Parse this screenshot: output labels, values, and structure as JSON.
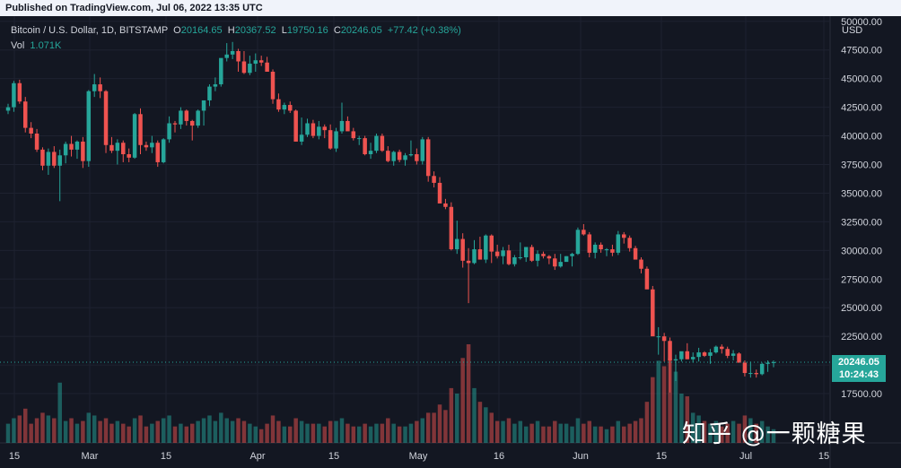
{
  "header": {
    "published": "Published on TradingView.com, Jul 06, 2022 13:35 UTC"
  },
  "legend": {
    "symbol": "Bitcoin / U.S. Dollar, 1D, BITSTAMP",
    "open_label": "O",
    "open": "20164.65",
    "high_label": "H",
    "high": "20367.52",
    "low_label": "L",
    "low": "19750.16",
    "close_label": "C",
    "close": "20246.05",
    "change": "+77.42 (+0.38%)",
    "vol_label": "Vol",
    "vol": "1.071K"
  },
  "currency": "USD",
  "price_tag": {
    "price": "20246.05",
    "countdown": "10:24:43"
  },
  "watermark": "知乎 @一颗糖果",
  "colors": {
    "up": "#26a69a",
    "down": "#ef5350",
    "background": "#131722",
    "grid": "#1e2230"
  },
  "chart_data": {
    "type": "candlestick",
    "ylim": [
      15000,
      51000
    ],
    "y_ticks": [
      "17500.00",
      "20000.00",
      "22500.00",
      "25000.00",
      "27500.00",
      "30000.00",
      "32500.00",
      "35000.00",
      "37500.00",
      "40000.00",
      "42500.00",
      "45000.00",
      "47500.00",
      "50000.00"
    ],
    "x_ticks": [
      "15",
      "Mar",
      "15",
      "Apr",
      "15",
      "May",
      "16",
      "Jun",
      "15",
      "Jul",
      "15"
    ],
    "last_price": 20246.05,
    "candles_ohlcv": [
      [
        42200,
        42800,
        41900,
        42500,
        14
      ],
      [
        42500,
        44800,
        42100,
        44600,
        18
      ],
      [
        44600,
        44900,
        42800,
        43000,
        20
      ],
      [
        43000,
        43400,
        40300,
        40700,
        25
      ],
      [
        40700,
        41200,
        39800,
        40200,
        14
      ],
      [
        40200,
        40600,
        38600,
        38800,
        18
      ],
      [
        38800,
        39000,
        37000,
        37400,
        22
      ],
      [
        37400,
        38900,
        36600,
        38600,
        20
      ],
      [
        38600,
        39100,
        37200,
        37400,
        18
      ],
      [
        37400,
        38800,
        34300,
        38300,
        44
      ],
      [
        38300,
        39500,
        37600,
        39300,
        16
      ],
      [
        39300,
        40000,
        38200,
        38800,
        18
      ],
      [
        38800,
        39600,
        38000,
        39500,
        14
      ],
      [
        39500,
        39900,
        37200,
        37800,
        16
      ],
      [
        37800,
        44000,
        37300,
        43900,
        22
      ],
      [
        43900,
        45400,
        43400,
        44500,
        20
      ],
      [
        44500,
        45100,
        43300,
        43900,
        16
      ],
      [
        43900,
        44000,
        38500,
        39200,
        18
      ],
      [
        39200,
        39900,
        38500,
        38700,
        14
      ],
      [
        38700,
        39700,
        37500,
        39400,
        16
      ],
      [
        39400,
        39600,
        37700,
        38400,
        14
      ],
      [
        38400,
        38900,
        37700,
        38100,
        12
      ],
      [
        38100,
        42000,
        38000,
        41900,
        18
      ],
      [
        41900,
        42400,
        38400,
        39200,
        20
      ],
      [
        39200,
        39500,
        38700,
        39000,
        12
      ],
      [
        39000,
        40000,
        38500,
        39400,
        14
      ],
      [
        39400,
        39600,
        37300,
        37700,
        16
      ],
      [
        37700,
        39800,
        37600,
        39700,
        18
      ],
      [
        39700,
        41700,
        39400,
        41100,
        20
      ],
      [
        41100,
        41300,
        40300,
        41000,
        12
      ],
      [
        41000,
        42500,
        40600,
        42200,
        14
      ],
      [
        42200,
        42300,
        40900,
        41300,
        12
      ],
      [
        41300,
        41400,
        39600,
        40900,
        14
      ],
      [
        40900,
        42300,
        40700,
        42200,
        16
      ],
      [
        42200,
        42900,
        40900,
        43100,
        18
      ],
      [
        43100,
        44500,
        42600,
        44300,
        20
      ],
      [
        44300,
        45100,
        43900,
        44500,
        16
      ],
      [
        44500,
        46600,
        44300,
        46800,
        22
      ],
      [
        46800,
        48100,
        46500,
        47100,
        18
      ],
      [
        47100,
        48200,
        46700,
        47400,
        16
      ],
      [
        47400,
        47600,
        45600,
        46500,
        18
      ],
      [
        46500,
        47400,
        45400,
        45500,
        16
      ],
      [
        45500,
        47000,
        45300,
        46300,
        14
      ],
      [
        46300,
        47200,
        45600,
        46600,
        12
      ],
      [
        46600,
        47000,
        46100,
        46400,
        10
      ],
      [
        46400,
        46900,
        45600,
        45600,
        14
      ],
      [
        45600,
        45800,
        42800,
        43200,
        20
      ],
      [
        43200,
        43700,
        42100,
        42300,
        16
      ],
      [
        42300,
        42900,
        41900,
        42700,
        12
      ],
      [
        42700,
        43000,
        42000,
        42200,
        12
      ],
      [
        42200,
        42300,
        39700,
        39500,
        18
      ],
      [
        39500,
        41600,
        39200,
        40100,
        16
      ],
      [
        40100,
        41500,
        39900,
        41100,
        14
      ],
      [
        41100,
        41400,
        39800,
        40000,
        14
      ],
      [
        40000,
        41300,
        39700,
        40800,
        14
      ],
      [
        40800,
        41000,
        39800,
        40500,
        12
      ],
      [
        40500,
        41000,
        38800,
        38900,
        16
      ],
      [
        38900,
        40700,
        38600,
        40400,
        16
      ],
      [
        40400,
        42900,
        40200,
        41300,
        18
      ],
      [
        41300,
        41700,
        40600,
        40400,
        14
      ],
      [
        40400,
        40700,
        39600,
        39800,
        12
      ],
      [
        39800,
        40000,
        39200,
        39800,
        12
      ],
      [
        39800,
        40000,
        38300,
        38400,
        14
      ],
      [
        38400,
        39400,
        38000,
        38700,
        12
      ],
      [
        38700,
        40200,
        38500,
        40000,
        14
      ],
      [
        40000,
        40200,
        38600,
        38700,
        14
      ],
      [
        38700,
        39100,
        37700,
        37800,
        18
      ],
      [
        37800,
        38700,
        37400,
        38600,
        14
      ],
      [
        38600,
        38800,
        37700,
        37900,
        12
      ],
      [
        37900,
        38500,
        37400,
        38300,
        12
      ],
      [
        38300,
        39600,
        38200,
        38400,
        14
      ],
      [
        38400,
        38900,
        37500,
        37800,
        16
      ],
      [
        37800,
        39900,
        37500,
        39700,
        18
      ],
      [
        39700,
        39900,
        36000,
        36500,
        22
      ],
      [
        36500,
        36900,
        35500,
        35900,
        22
      ],
      [
        35900,
        36400,
        34200,
        34100,
        28
      ],
      [
        34100,
        34500,
        33600,
        33800,
        24
      ],
      [
        33800,
        34200,
        30000,
        30100,
        40
      ],
      [
        30100,
        32600,
        29700,
        31000,
        36
      ],
      [
        31000,
        31500,
        28500,
        29100,
        62
      ],
      [
        29100,
        30200,
        25400,
        28900,
        72
      ],
      [
        28900,
        30900,
        28800,
        30100,
        40
      ],
      [
        30100,
        31200,
        29400,
        29200,
        30
      ],
      [
        29200,
        31400,
        28900,
        31300,
        26
      ],
      [
        31300,
        31400,
        28900,
        29900,
        22
      ],
      [
        29900,
        30500,
        29300,
        29500,
        16
      ],
      [
        29500,
        30300,
        28800,
        30000,
        16
      ],
      [
        30000,
        30500,
        28700,
        28800,
        18
      ],
      [
        28800,
        29600,
        28600,
        29400,
        14
      ],
      [
        29400,
        30700,
        29200,
        29400,
        16
      ],
      [
        29400,
        30300,
        29000,
        30300,
        12
      ],
      [
        30300,
        30500,
        29000,
        29100,
        14
      ],
      [
        29100,
        30000,
        28600,
        29700,
        16
      ],
      [
        29700,
        29900,
        29300,
        29500,
        12
      ],
      [
        29500,
        29600,
        28800,
        29300,
        12
      ],
      [
        29300,
        29700,
        28300,
        28600,
        16
      ],
      [
        28600,
        29700,
        28500,
        29000,
        14
      ],
      [
        29000,
        29500,
        29100,
        29500,
        14
      ],
      [
        29500,
        29800,
        28600,
        29700,
        12
      ],
      [
        29700,
        32000,
        29600,
        31800,
        18
      ],
      [
        31800,
        32300,
        31300,
        31400,
        14
      ],
      [
        31400,
        31600,
        29400,
        29800,
        16
      ],
      [
        29800,
        30700,
        29300,
        30500,
        12
      ],
      [
        30500,
        30700,
        29800,
        30100,
        12
      ],
      [
        30100,
        30200,
        29500,
        30100,
        10
      ],
      [
        30100,
        30500,
        29500,
        29800,
        12
      ],
      [
        29800,
        31700,
        29600,
        31400,
        16
      ],
      [
        31400,
        31600,
        30600,
        31100,
        12
      ],
      [
        31100,
        31300,
        29900,
        30200,
        14
      ],
      [
        30200,
        30400,
        29600,
        29200,
        16
      ],
      [
        29200,
        29400,
        28000,
        28400,
        18
      ],
      [
        28400,
        28600,
        26700,
        26600,
        30
      ],
      [
        26600,
        26900,
        23000,
        22500,
        48
      ],
      [
        22500,
        23300,
        20900,
        22500,
        60
      ],
      [
        22500,
        22800,
        20300,
        22100,
        56
      ],
      [
        22100,
        22400,
        17600,
        20400,
        62
      ],
      [
        20400,
        20900,
        18600,
        20500,
        52
      ],
      [
        20500,
        21000,
        20300,
        21200,
        36
      ],
      [
        21200,
        21900,
        20500,
        20500,
        34
      ],
      [
        20500,
        21100,
        20200,
        20700,
        22
      ],
      [
        20700,
        21500,
        20300,
        21100,
        20
      ],
      [
        21100,
        21200,
        20700,
        20800,
        16
      ],
      [
        20800,
        21400,
        20100,
        21100,
        14
      ],
      [
        21100,
        21700,
        21000,
        21600,
        16
      ],
      [
        21600,
        21800,
        21000,
        21400,
        12
      ],
      [
        21400,
        21600,
        20600,
        20800,
        14
      ],
      [
        20800,
        21300,
        20400,
        21000,
        16
      ],
      [
        21000,
        21100,
        20200,
        20200,
        14
      ],
      [
        20200,
        20400,
        19000,
        19300,
        20
      ],
      [
        19300,
        20300,
        18900,
        19300,
        18
      ],
      [
        19300,
        19600,
        18900,
        19200,
        14
      ],
      [
        19200,
        20200,
        19100,
        20100,
        16
      ],
      [
        20100,
        20400,
        19400,
        20200,
        12
      ],
      [
        20200,
        20400,
        19800,
        20250,
        10
      ]
    ]
  }
}
